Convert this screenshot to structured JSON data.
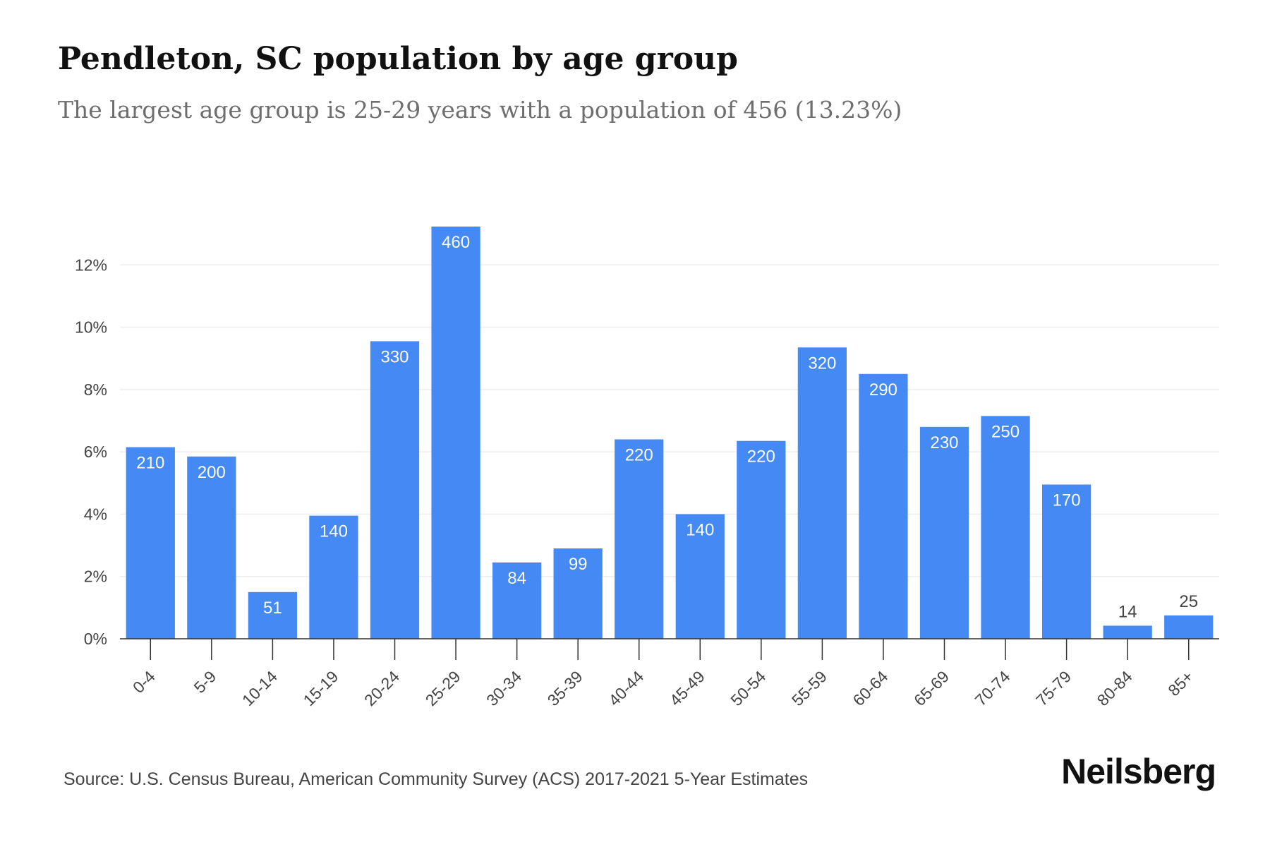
{
  "title": "Pendleton, SC population by age group",
  "subtitle": "The largest age group is 25-29 years with a population of 456 (13.23%)",
  "source": "Source: U.S. Census Bureau, American Community Survey (ACS) 2017-2021 5-Year Estimates",
  "brand": "Neilsberg",
  "colors": {
    "bar": "#4589f5",
    "label_inside": "#ffffff",
    "label_outside": "#444444",
    "grid": "#eeeeee",
    "axis": "#333333"
  },
  "chart_data": {
    "type": "bar",
    "categories": [
      "0-4",
      "5-9",
      "10-14",
      "15-19",
      "20-24",
      "25-29",
      "30-34",
      "35-39",
      "40-44",
      "45-49",
      "50-54",
      "55-59",
      "60-64",
      "65-69",
      "70-74",
      "75-79",
      "80-84",
      "85+"
    ],
    "values": [
      6.15,
      5.85,
      1.5,
      3.95,
      9.55,
      13.23,
      2.45,
      2.9,
      6.4,
      4.0,
      6.35,
      9.35,
      8.5,
      6.8,
      7.15,
      4.95,
      0.42,
      0.75
    ],
    "data_labels": [
      "210",
      "200",
      "51",
      "140",
      "330",
      "460",
      "84",
      "99",
      "220",
      "140",
      "220",
      "320",
      "290",
      "230",
      "250",
      "170",
      "14",
      "25"
    ],
    "yticks": [
      0,
      2,
      4,
      6,
      8,
      10,
      12
    ],
    "ytick_labels": [
      "0%",
      "2%",
      "4%",
      "6%",
      "8%",
      "10%",
      "12%"
    ],
    "ylim": [
      0,
      14
    ],
    "xlabel": "",
    "ylabel": "",
    "grid": true,
    "legend": false
  }
}
